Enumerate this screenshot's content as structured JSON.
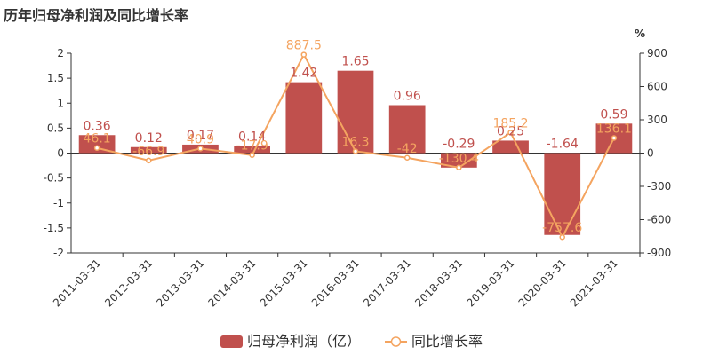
{
  "title": "历年归母净利润及同比增长率",
  "chart_data": {
    "type": "bar",
    "title": "历年归母净利润及同比增长率",
    "categories": [
      "2011-03-31",
      "2012-03-31",
      "2013-03-31",
      "2014-03-31",
      "2015-03-31",
      "2016-03-31",
      "2017-03-31",
      "2018-03-31",
      "2019-03-31",
      "2020-03-31",
      "2021-03-31"
    ],
    "series": [
      {
        "name": "归母净利润（亿）",
        "type": "bar",
        "axis": "left",
        "values": [
          0.36,
          0.12,
          0.17,
          0.14,
          1.42,
          1.65,
          0.96,
          -0.29,
          0.25,
          -1.64,
          0.59
        ],
        "labels": [
          "0.36",
          "0.12",
          "0.17",
          "0.14",
          "1.42",
          "1.65",
          "0.96",
          "-0.29",
          "0.25",
          "-1.64",
          "0.59"
        ]
      },
      {
        "name": "同比增长率",
        "type": "line",
        "axis": "right",
        "values": [
          46.1,
          -66.9,
          40.9,
          -17.9,
          887.5,
          16.3,
          -42,
          -130.4,
          185.2,
          -757.6,
          136.1
        ],
        "labels": [
          "46.1",
          "-66.9",
          "40.9",
          "-17.9",
          "887.5",
          "16.3",
          "-42",
          "-130.4",
          "185.2",
          "-757.6",
          "136.1"
        ]
      }
    ],
    "y_left": {
      "ylim": [
        -2,
        2
      ],
      "ticks": [
        "2",
        "1.5",
        "1",
        "0.5",
        "0",
        "-0.5",
        "-1",
        "-1.5",
        "-2"
      ]
    },
    "y_right": {
      "ylim": [
        -900,
        900
      ],
      "ticks": [
        "900",
        "600",
        "300",
        "0",
        "-300",
        "-600",
        "-900"
      ],
      "unit": "%"
    },
    "legend_position": "bottom",
    "grid": false,
    "colors": {
      "bar": "#c0504d",
      "line": "#f4a460",
      "bar_label": "#c0504d",
      "line_label": "#f4a460"
    }
  }
}
